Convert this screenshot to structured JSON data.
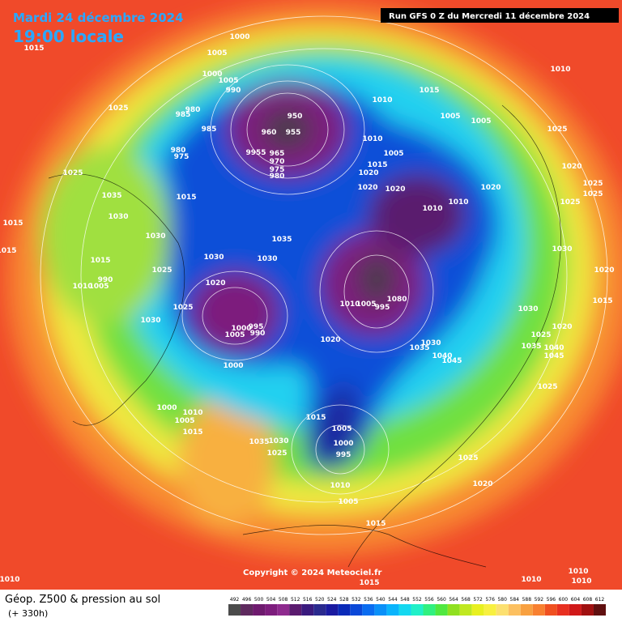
{
  "header": {
    "date": "Mardi 24 décembre 2024",
    "time": "19:00 locale",
    "run": "Run GFS 0 Z du Mercredi 11 décembre 2024"
  },
  "copyright": "Copyright © 2024 Meteociel.fr",
  "footer": {
    "title": "Géop. Z500 & pression au sol",
    "lead": "(+ 330h)"
  },
  "legend": {
    "values": [
      "492",
      "496",
      "500",
      "504",
      "508",
      "512",
      "516",
      "520",
      "524",
      "528",
      "532",
      "536",
      "540",
      "544",
      "548",
      "552",
      "556",
      "560",
      "564",
      "568",
      "572",
      "576",
      "580",
      "584",
      "588",
      "592",
      "596",
      "600",
      "604",
      "608",
      "612"
    ],
    "colors": [
      "#4b4b4b",
      "#5e2a5e",
      "#6e1a6e",
      "#7d1d7d",
      "#8e2a8e",
      "#5a1a6e",
      "#3a1a7e",
      "#2a2a8e",
      "#1a1aa0",
      "#0a2ab8",
      "#0a48d8",
      "#0a6cf0",
      "#0a90f8",
      "#0ab4fc",
      "#14d8f0",
      "#20f0c8",
      "#30f080",
      "#50e840",
      "#90e020",
      "#c0e820",
      "#e8f020",
      "#f8f040",
      "#fce070",
      "#fcc060",
      "#f8a040",
      "#f88030",
      "#f05020",
      "#e83020",
      "#d01818",
      "#a01010",
      "#601010"
    ]
  },
  "isobar_labels": [
    "1000",
    "1015",
    "1005",
    "1000",
    "1005",
    "990",
    "1025",
    "985",
    "980",
    "985",
    "950",
    "960",
    "955",
    "980",
    "975",
    "9955",
    "965",
    "970",
    "975",
    "980",
    "1010",
    "1015",
    "1005",
    "1005",
    "1010",
    "1005",
    "1015",
    "1020",
    "1020",
    "1020",
    "1010",
    "1010",
    "1020",
    "1010",
    "1025",
    "1025",
    "1035",
    "1015",
    "1030",
    "1015",
    "1015",
    "1030",
    "1035",
    "1030",
    "1030",
    "1015",
    "1025",
    "1020",
    "1010",
    "1005",
    "990",
    "1025",
    "1030",
    "1000",
    "995",
    "1005",
    "990",
    "1010",
    "1005",
    "1080",
    "995",
    "1020",
    "1000",
    "1000",
    "1005",
    "1010",
    "1015",
    "1035",
    "1030",
    "1025",
    "1015",
    "1005",
    "1000",
    "995",
    "1010",
    "1005",
    "1015",
    "1025",
    "1020",
    "1030",
    "1020",
    "1025",
    "1035",
    "1040",
    "1045",
    "1045",
    "1040",
    "1035",
    "1030",
    "1025",
    "1030",
    "1020",
    "1015",
    "1025",
    "1025",
    "1025",
    "1020",
    "1010",
    "1010",
    "1010",
    "1010",
    "1015"
  ]
}
